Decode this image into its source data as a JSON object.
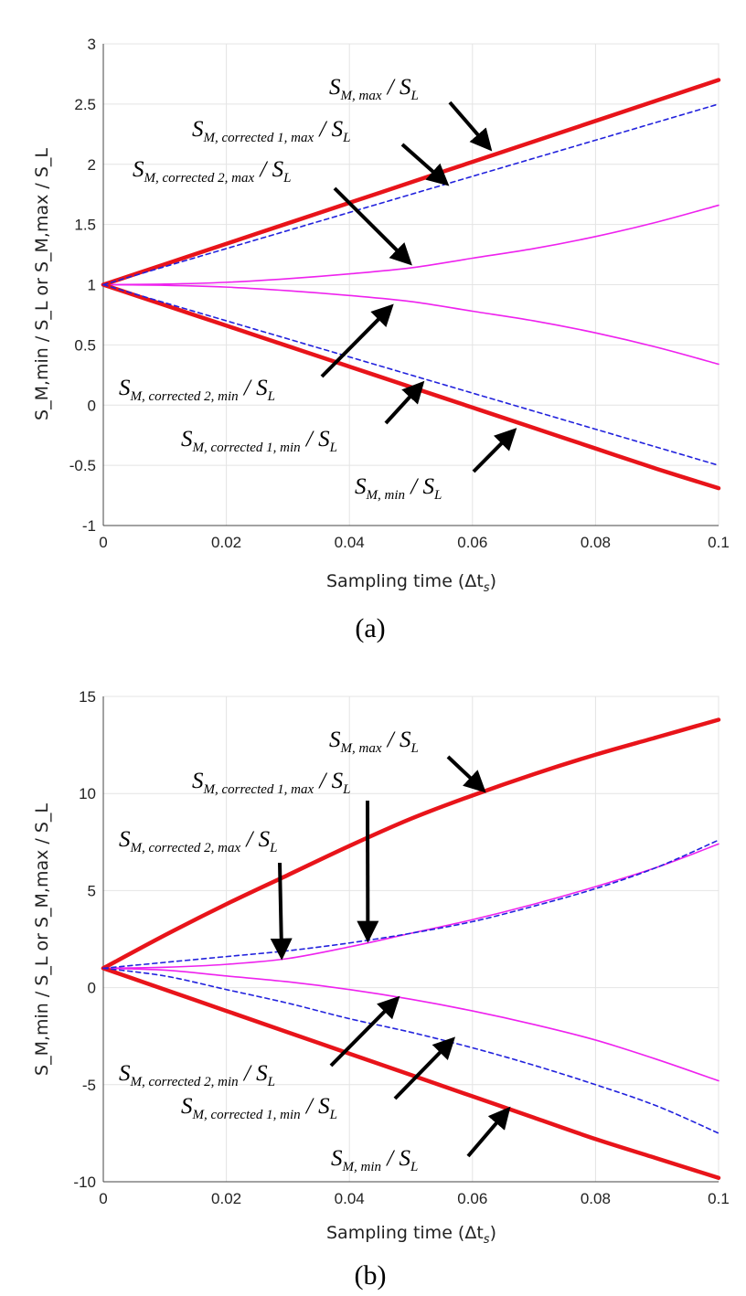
{
  "colors": {
    "max_min": "#e8141a",
    "corrected1": "#2222dd",
    "corrected2": "#ee22ee",
    "grid": "#e4e4e4",
    "arrow": "#000000"
  },
  "chart_data": [
    {
      "type": "line",
      "panel": "(a)",
      "caption": "(a)",
      "xlabel": "Sampling time (Δt",
      "xlabel_sub": "s",
      "xlabel_end": ")",
      "ylabel": "S_M,min / S_L  or S_M,max / S_L",
      "xlim": [
        0,
        0.1
      ],
      "ylim": [
        -1,
        3
      ],
      "xticks": [
        "0",
        "0.02",
        "0.04",
        "0.06",
        "0.08",
        "0.1"
      ],
      "yticks": [
        "-1",
        "-0.5",
        "0",
        "0.5",
        "1",
        "1.5",
        "2",
        "2.5",
        "3"
      ],
      "grid": true,
      "x": [
        0,
        0.01,
        0.02,
        0.03,
        0.04,
        0.05,
        0.06,
        0.07,
        0.08,
        0.09,
        0.1
      ],
      "series": [
        {
          "key": "max",
          "values": [
            1,
            1.17,
            1.34,
            1.51,
            1.68,
            1.85,
            2.02,
            2.19,
            2.36,
            2.53,
            2.7
          ]
        },
        {
          "key": "corrected1_max",
          "values": [
            1,
            1.15,
            1.3,
            1.45,
            1.6,
            1.75,
            1.9,
            2.05,
            2.2,
            2.35,
            2.5
          ]
        },
        {
          "key": "corrected2_max",
          "values": [
            1,
            1.005,
            1.02,
            1.05,
            1.09,
            1.14,
            1.22,
            1.3,
            1.4,
            1.52,
            1.66
          ]
        },
        {
          "key": "corrected2_min",
          "values": [
            1,
            0.995,
            0.98,
            0.95,
            0.91,
            0.86,
            0.78,
            0.7,
            0.6,
            0.48,
            0.34
          ]
        },
        {
          "key": "corrected1_min",
          "values": [
            1,
            0.85,
            0.7,
            0.55,
            0.4,
            0.25,
            0.1,
            -0.05,
            -0.2,
            -0.35,
            -0.5
          ]
        },
        {
          "key": "min",
          "values": [
            1,
            0.83,
            0.66,
            0.49,
            0.32,
            0.15,
            -0.02,
            -0.19,
            -0.36,
            -0.53,
            -0.69
          ]
        }
      ],
      "annotations": [
        {
          "main": "S",
          "sub": "M, max",
          "tail": " / S",
          "tail_sub": "L",
          "arrow_to": [
            0.063,
            2.12
          ]
        },
        {
          "main": "S",
          "sub": "M, corrected 1, max",
          "tail": " / S",
          "tail_sub": "L",
          "arrow_to": [
            0.056,
            1.83
          ]
        },
        {
          "main": "S",
          "sub": "M, corrected 2, max",
          "tail": " / S",
          "tail_sub": "L",
          "arrow_to": [
            0.05,
            1.17
          ]
        },
        {
          "main": "S",
          "sub": "M, corrected 2, min",
          "tail": " / S",
          "tail_sub": "L",
          "arrow_to": [
            0.047,
            0.83
          ]
        },
        {
          "main": "S",
          "sub": "M, corrected 1, min",
          "tail": " / S",
          "tail_sub": "L",
          "arrow_to": [
            0.052,
            0.19
          ]
        },
        {
          "main": "S",
          "sub": "M, min",
          "tail": " / S",
          "tail_sub": "L",
          "arrow_to": [
            0.067,
            -0.2
          ]
        }
      ]
    },
    {
      "type": "line",
      "panel": "(b)",
      "caption": "(b)",
      "xlabel": "Sampling time (Δt",
      "xlabel_sub": "s",
      "xlabel_end": ")",
      "ylabel": "S_M,min / S_L  or S_M,max / S_L",
      "xlim": [
        0,
        0.1
      ],
      "ylim": [
        -10,
        15
      ],
      "xticks": [
        "0",
        "0.02",
        "0.04",
        "0.06",
        "0.08",
        "0.1"
      ],
      "yticks": [
        "-10",
        "-5",
        "0",
        "5",
        "10",
        "15"
      ],
      "grid": true,
      "x": [
        0,
        0.01,
        0.02,
        0.03,
        0.04,
        0.05,
        0.06,
        0.07,
        0.08,
        0.09,
        0.1
      ],
      "series": [
        {
          "key": "max",
          "values": [
            1,
            2.7,
            4.3,
            5.8,
            7.3,
            8.7,
            9.9,
            11.0,
            12.0,
            12.9,
            13.8
          ]
        },
        {
          "key": "corrected1_max",
          "values": [
            1,
            1.3,
            1.6,
            1.9,
            2.3,
            2.8,
            3.4,
            4.2,
            5.1,
            6.2,
            7.6
          ]
        },
        {
          "key": "corrected2_max",
          "values": [
            1,
            1.05,
            1.2,
            1.5,
            2.1,
            2.8,
            3.5,
            4.3,
            5.2,
            6.2,
            7.4
          ]
        },
        {
          "key": "corrected2_min",
          "values": [
            1,
            0.9,
            0.6,
            0.3,
            -0.1,
            -0.6,
            -1.2,
            -1.9,
            -2.7,
            -3.7,
            -4.8
          ]
        },
        {
          "key": "corrected1_min",
          "values": [
            1,
            0.6,
            -0.1,
            -0.8,
            -1.6,
            -2.3,
            -3.1,
            -4.0,
            -5.0,
            -6.1,
            -7.5
          ]
        },
        {
          "key": "min",
          "values": [
            1,
            -0.1,
            -1.2,
            -2.3,
            -3.4,
            -4.5,
            -5.6,
            -6.7,
            -7.8,
            -8.8,
            -9.8
          ]
        }
      ],
      "annotations": [
        {
          "main": "S",
          "sub": "M, max",
          "tail": " / S",
          "tail_sub": "L",
          "arrow_to": [
            0.062,
            10.1
          ]
        },
        {
          "main": "S",
          "sub": "M, corrected 1, max",
          "tail": " / S",
          "tail_sub": "L",
          "arrow_to": [
            0.043,
            2.4
          ]
        },
        {
          "main": "S",
          "sub": "M, corrected 2, max",
          "tail": " / S",
          "tail_sub": "L",
          "arrow_to": [
            0.029,
            1.5
          ]
        },
        {
          "main": "S",
          "sub": "M, corrected 2, min",
          "tail": " / S",
          "tail_sub": "L",
          "arrow_to": [
            0.048,
            -0.5
          ]
        },
        {
          "main": "S",
          "sub": "M, corrected 1, min",
          "tail": " / S",
          "tail_sub": "L",
          "arrow_to": [
            0.057,
            -2.6
          ]
        },
        {
          "main": "S",
          "sub": "M, min",
          "tail": " / S",
          "tail_sub": "L",
          "arrow_to": [
            0.066,
            -6.2
          ]
        }
      ]
    }
  ]
}
